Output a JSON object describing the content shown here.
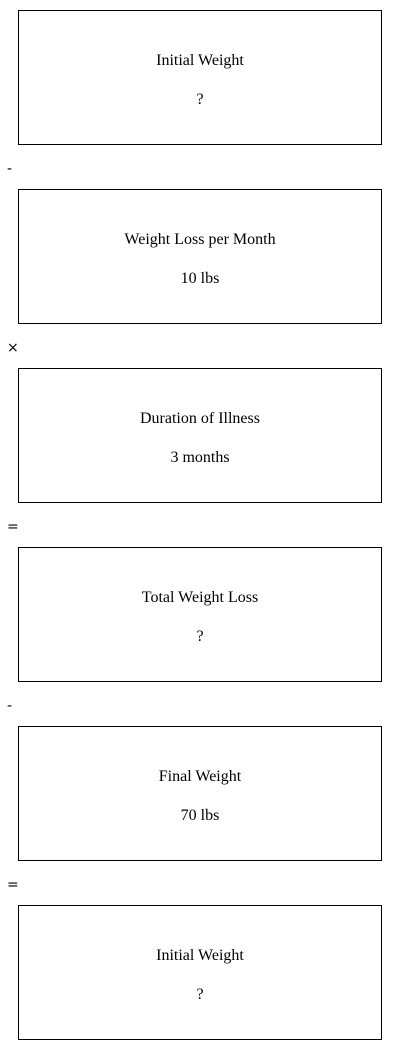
{
  "boxes": [
    {
      "title": "Initial Weight",
      "value": "?"
    },
    {
      "title": "Weight Loss per Month",
      "value": "10 lbs"
    },
    {
      "title": "Duration of Illness",
      "value": "3 months"
    },
    {
      "title": "Total Weight Loss",
      "value": "?"
    },
    {
      "title": "Final Weight",
      "value": "70 lbs"
    },
    {
      "title": "Initial Weight",
      "value": "?"
    }
  ],
  "operators": [
    "-",
    "×",
    "=",
    "-",
    "="
  ]
}
